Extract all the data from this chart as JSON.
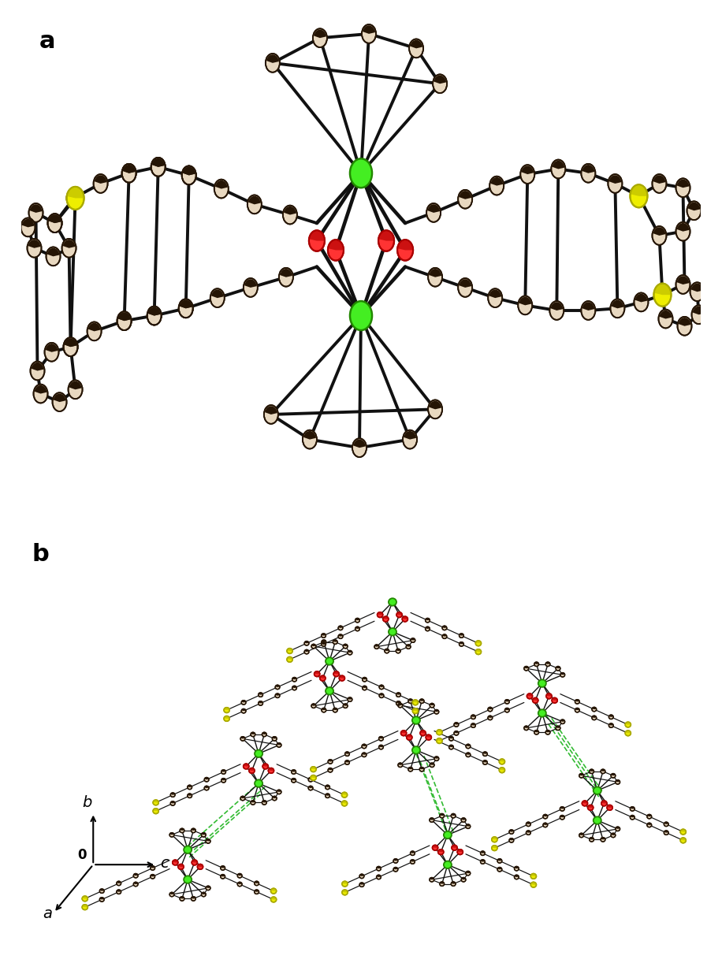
{
  "panel_a_label": "a",
  "panel_b_label": "b",
  "bg_color": "#ffffff",
  "Cr_color": "#44ee22",
  "Cr_edge": "#228800",
  "O_color": "#ff3333",
  "O_edge": "#aa0000",
  "S_color": "#eeee00",
  "S_edge": "#aaaa00",
  "C_light": "#e8d8c0",
  "C_dark": "#251505",
  "C_edge": "#251505",
  "bond_color": "#111111",
  "green_dash": "#33bb33",
  "label_fs": 22,
  "axis_fs": 14
}
